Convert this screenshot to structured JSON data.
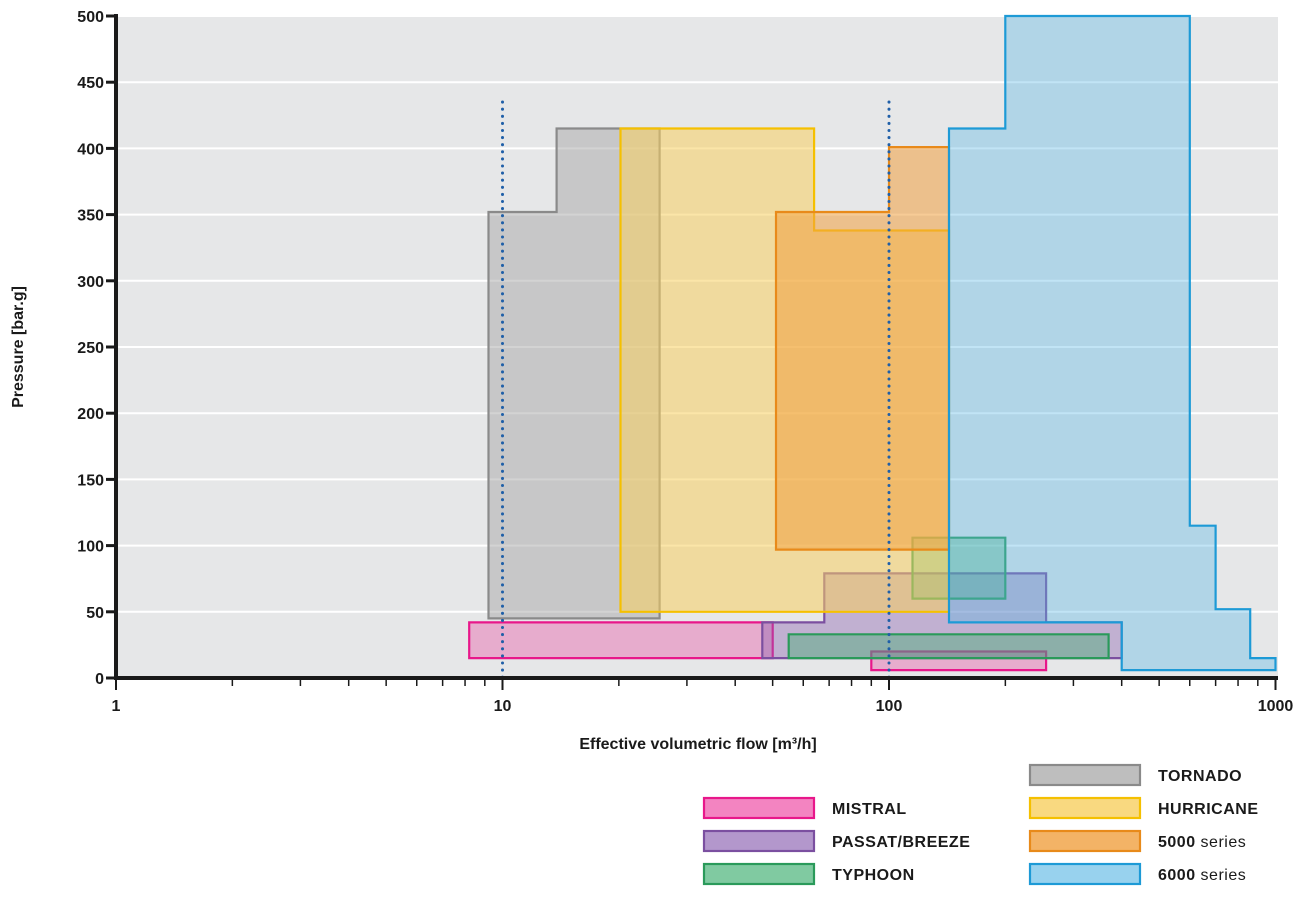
{
  "chart_data": {
    "type": "area",
    "title": "",
    "xlabel": "Effective volumetric flow [m³/h]",
    "ylabel": "Pressure [bar.g]",
    "x_scale": "log",
    "xlim": [
      1,
      1100
    ],
    "ylim": [
      0,
      500
    ],
    "grid": "horizontal",
    "plot_background": "#e6e7e8",
    "x_tick_labels": [
      1,
      10,
      100,
      1000
    ],
    "x_minor_ticks": [
      2,
      3,
      4,
      5,
      6,
      7,
      8,
      9,
      20,
      30,
      40,
      50,
      60,
      70,
      80,
      90,
      200,
      300,
      400,
      500,
      600,
      700,
      800,
      900
    ],
    "y_ticks": [
      0,
      50,
      100,
      150,
      200,
      250,
      300,
      350,
      400,
      450,
      500
    ],
    "reference_lines": [
      {
        "x": 10,
        "y_top": 435,
        "color": "#1f5fa8",
        "style": "dotted"
      },
      {
        "x": 100,
        "y_top": 435,
        "color": "#1f5fa8",
        "style": "dotted"
      }
    ],
    "legend_placement": "bottom-right",
    "series": [
      {
        "name": "MISTRAL",
        "stroke": "#e8178a",
        "fill": "#e8178a",
        "opacity": 0.28,
        "polygons": [
          [
            [
              8.2,
              15
            ],
            [
              50,
              15
            ],
            [
              50,
              42
            ],
            [
              8.2,
              42
            ]
          ],
          [
            [
              90,
              6
            ],
            [
              255,
              6
            ],
            [
              255,
              20
            ],
            [
              90,
              20
            ]
          ]
        ]
      },
      {
        "name": "PASSAT/BREEZE",
        "stroke": "#7b4fa0",
        "fill": "#8a5fb0",
        "opacity": 0.4,
        "polygons": [
          [
            [
              47,
              15
            ],
            [
              400,
              15
            ],
            [
              400,
              42
            ],
            [
              255,
              42
            ],
            [
              255,
              79
            ],
            [
              68,
              79
            ],
            [
              68,
              42
            ],
            [
              47,
              42
            ]
          ]
        ]
      },
      {
        "name": "TYPHOON",
        "stroke": "#2a9a5a",
        "fill": "#3cae6e",
        "opacity": 0.4,
        "polygons": [
          [
            [
              55,
              15
            ],
            [
              370,
              15
            ],
            [
              370,
              33
            ],
            [
              55,
              33
            ]
          ],
          [
            [
              115,
              60
            ],
            [
              200,
              60
            ],
            [
              200,
              106
            ],
            [
              115,
              106
            ]
          ]
        ]
      },
      {
        "name": "TORNADO",
        "stroke": "#8a8a8a",
        "fill": "#a8a8a8",
        "opacity": 0.5,
        "polygons": [
          [
            [
              9.2,
              45
            ],
            [
              25.5,
              45
            ],
            [
              25.5,
              415
            ],
            [
              13.8,
              415
            ],
            [
              13.8,
              352
            ],
            [
              9.2,
              352
            ]
          ]
        ]
      },
      {
        "name": "HURRICANE",
        "stroke": "#f5c000",
        "fill": "#f8d060",
        "opacity": 0.55,
        "polygons": [
          [
            [
              20.2,
              50
            ],
            [
              143,
              50
            ],
            [
              143,
              338
            ],
            [
              64,
              338
            ],
            [
              64,
              415
            ],
            [
              20.2,
              415
            ]
          ]
        ]
      },
      {
        "name": "5000",
        "name_suffix": "series",
        "stroke": "#e88a1a",
        "fill": "#f0a040",
        "opacity": 0.55,
        "polygons": [
          [
            [
              51,
              97
            ],
            [
              143,
              97
            ],
            [
              143,
              401
            ],
            [
              100,
              401
            ],
            [
              100,
              352
            ],
            [
              51,
              352
            ]
          ]
        ]
      },
      {
        "name": "6000",
        "name_suffix": "series",
        "stroke": "#1d9ad6",
        "fill": "#5cb8e4",
        "opacity": 0.38,
        "polygons": [
          [
            [
              143,
              42
            ],
            [
              143,
              415
            ],
            [
              200,
              415
            ],
            [
              200,
              500
            ],
            [
              600,
              500
            ],
            [
              600,
              115
            ],
            [
              700,
              115
            ],
            [
              700,
              52
            ],
            [
              860,
              52
            ],
            [
              860,
              15
            ],
            [
              1000,
              15
            ],
            [
              1000,
              6
            ],
            [
              400,
              6
            ],
            [
              400,
              42
            ]
          ]
        ]
      }
    ]
  }
}
